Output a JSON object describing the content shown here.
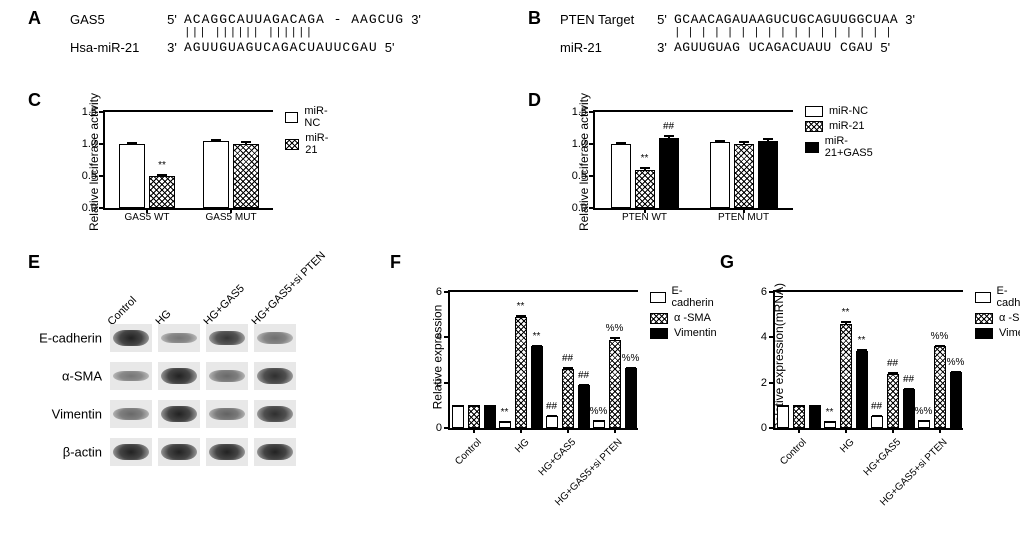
{
  "panelA": {
    "label": "A",
    "top_name": "GAS5",
    "top_5": "5'",
    "top_seq": "ACAGGCAUUAGACAGA - AAGCUG",
    "top_3": "3'",
    "bonds": "           ||| ||||||    ||||||",
    "bot_name": "Hsa-miR-21",
    "bot_5": "3'",
    "bot_seq": "AGUUGUAGUCAGACUAUUCGAU",
    "bot_3": "5'"
  },
  "panelB": {
    "label": "B",
    "top_name": "PTEN Target",
    "top_5": "5'",
    "top_seq": "GCAACAGAUAAGUCUGCAGUUGGCUAA",
    "top_3": "3'",
    "bonds": "        | | | | |     | | | | | | | |       | | | |",
    "bot_name": "miR-21",
    "bot_5": "3'",
    "bot_seq": "AGUUGUAG   UCAGACUAUU   CGAU",
    "bot_3": "5'"
  },
  "panelC": {
    "label": "C",
    "y_title": "Relative luciferase activity",
    "ymax": 1.5,
    "ytick_step": 0.5,
    "groups": [
      "GAS5 WT",
      "GAS5 MUT"
    ],
    "series": [
      {
        "name": "miR-NC",
        "style": "open"
      },
      {
        "name": "miR-21",
        "style": "hatch"
      }
    ],
    "data": [
      {
        "vals": [
          1.0,
          0.5
        ],
        "err": [
          0.05,
          0.05
        ],
        "sig": [
          "",
          "**"
        ]
      },
      {
        "vals": [
          1.05,
          1.0
        ],
        "err": [
          0.05,
          0.07
        ],
        "sig": [
          "",
          ""
        ]
      }
    ]
  },
  "panelD": {
    "label": "D",
    "y_title": "Relative luciferase activity",
    "ymax": 1.5,
    "ytick_step": 0.5,
    "groups": [
      "PTEN WT",
      "PTEN MUT"
    ],
    "series": [
      {
        "name": "miR-NC",
        "style": "open"
      },
      {
        "name": "miR-21",
        "style": "hatch"
      },
      {
        "name": "miR-21+GAS5",
        "style": "solid"
      }
    ],
    "data": [
      {
        "vals": [
          1.0,
          0.6,
          1.1
        ],
        "err": [
          0.05,
          0.05,
          0.05
        ],
        "sig": [
          "",
          "**",
          "##"
        ]
      },
      {
        "vals": [
          1.03,
          1.0,
          1.05
        ],
        "err": [
          0.05,
          0.06,
          0.06
        ],
        "sig": [
          "",
          "",
          ""
        ]
      }
    ]
  },
  "panelE": {
    "label": "E",
    "lanes": [
      "Control",
      "HG",
      "HG+GAS5",
      "HG+GAS5+si PTEN"
    ],
    "rows": [
      "E-cadherin",
      "α-SMA",
      "Vimentin",
      "β-actin"
    ],
    "intensities": [
      [
        1.0,
        0.35,
        0.85,
        0.4
      ],
      [
        0.35,
        1.0,
        0.45,
        0.9
      ],
      [
        0.45,
        1.0,
        0.5,
        0.9
      ],
      [
        1.0,
        1.0,
        1.0,
        1.0
      ]
    ]
  },
  "panelF": {
    "label": "F",
    "y_title": "Relative expression",
    "ymax": 6,
    "ytick_step": 2,
    "groups": [
      "Control",
      "HG",
      "HG+GAS5",
      "HG+GAS5+si PTEN"
    ],
    "series": [
      {
        "name": "E-cadherin",
        "style": "open"
      },
      {
        "name": "α -SMA",
        "style": "hatch"
      },
      {
        "name": "Vimentin",
        "style": "solid"
      }
    ],
    "data": [
      {
        "vals": [
          1.0,
          1.0,
          1.0
        ],
        "err": [
          0.08,
          0.08,
          0.08
        ],
        "sig": [
          "",
          "",
          ""
        ]
      },
      {
        "vals": [
          0.3,
          4.9,
          3.6
        ],
        "err": [
          0.05,
          0.15,
          0.12
        ],
        "sig": [
          "**",
          "**",
          "**"
        ]
      },
      {
        "vals": [
          0.55,
          2.6,
          1.9
        ],
        "err": [
          0.06,
          0.12,
          0.1
        ],
        "sig": [
          "##",
          "##",
          "##"
        ]
      },
      {
        "vals": [
          0.35,
          3.9,
          2.65
        ],
        "err": [
          0.05,
          0.14,
          0.1
        ],
        "sig": [
          "%%",
          "%%",
          "%%"
        ]
      }
    ]
  },
  "panelG": {
    "label": "G",
    "y_title": "Relative expression(mRNA)",
    "ymax": 6,
    "ytick_step": 2,
    "groups": [
      "Control",
      "HG",
      "HG+GAS5",
      "HG+GAS5+si PTEN"
    ],
    "series": [
      {
        "name": "E-cadherin",
        "style": "open"
      },
      {
        "name": "α -SMA",
        "style": "hatch"
      },
      {
        "name": "Vimentin",
        "style": "solid"
      }
    ],
    "data": [
      {
        "vals": [
          1.0,
          1.0,
          1.0
        ],
        "err": [
          0.08,
          0.08,
          0.08
        ],
        "sig": [
          "",
          "",
          ""
        ]
      },
      {
        "vals": [
          0.3,
          4.6,
          3.4
        ],
        "err": [
          0.05,
          0.15,
          0.12
        ],
        "sig": [
          "**",
          "**",
          "**"
        ]
      },
      {
        "vals": [
          0.55,
          2.4,
          1.7
        ],
        "err": [
          0.06,
          0.1,
          0.1
        ],
        "sig": [
          "##",
          "##",
          "##"
        ]
      },
      {
        "vals": [
          0.35,
          3.6,
          2.45
        ],
        "err": [
          0.05,
          0.12,
          0.1
        ],
        "sig": [
          "%%",
          "%%",
          "%%"
        ]
      }
    ]
  },
  "colors": {
    "background": "#ffffff",
    "axis": "#000000"
  }
}
